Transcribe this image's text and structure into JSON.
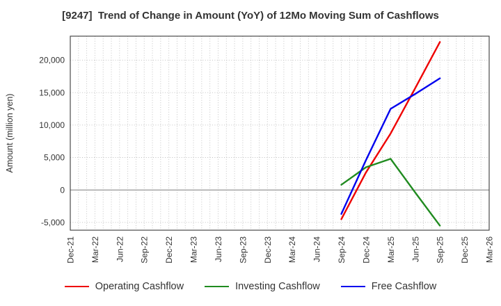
{
  "chart_data": {
    "type": "line",
    "title": "[9247]  Trend of Change in Amount (YoY) of 12Mo Moving Sum of Cashflows",
    "ticker": "9247",
    "ylabel": "Amount (million yen)",
    "xlabel": "",
    "unit": "million yen",
    "ylim": [
      -6200,
      23700
    ],
    "grid": "on",
    "grid_style": "dotted",
    "legend_position": "bottom center",
    "x_tick_labels": [
      "Dec-21",
      "Mar-22",
      "Jun-22",
      "Sep-22",
      "Dec-22",
      "Mar-23",
      "Jun-23",
      "Sep-23",
      "Dec-23",
      "Mar-24",
      "Jun-24",
      "Sep-24",
      "Dec-24",
      "Mar-25",
      "Jun-25",
      "Sep-25",
      "Dec-25",
      "Mar-26"
    ],
    "x_months_span": 51,
    "x_minor_grid_interval_months": 1,
    "y_tick_values": [
      20000,
      15000,
      10000,
      5000,
      0,
      -5000
    ],
    "y_tick_labels": [
      "20,000",
      "15,000",
      "10,000",
      "5,000",
      "0",
      "-5,000"
    ],
    "zero_line": true,
    "categories": [
      "Sep-24",
      "Dec-24",
      "Mar-25",
      "Jun-25",
      "Sep-25"
    ],
    "category_month_index": [
      33,
      36,
      39,
      42,
      45
    ],
    "series": [
      {
        "name": "Operating Cashflow",
        "key": "operating",
        "color": "#ee0000",
        "values": [
          -4500,
          2700,
          8700,
          15700,
          22800
        ]
      },
      {
        "name": "Investing Cashflow",
        "key": "investing",
        "color": "#208b20",
        "values": [
          800,
          3500,
          4800,
          -400,
          -5500
        ]
      },
      {
        "name": "Free Cashflow",
        "key": "free",
        "color": "#0000ee",
        "values": [
          -3700,
          4600,
          12500,
          14800,
          17200
        ]
      }
    ]
  }
}
